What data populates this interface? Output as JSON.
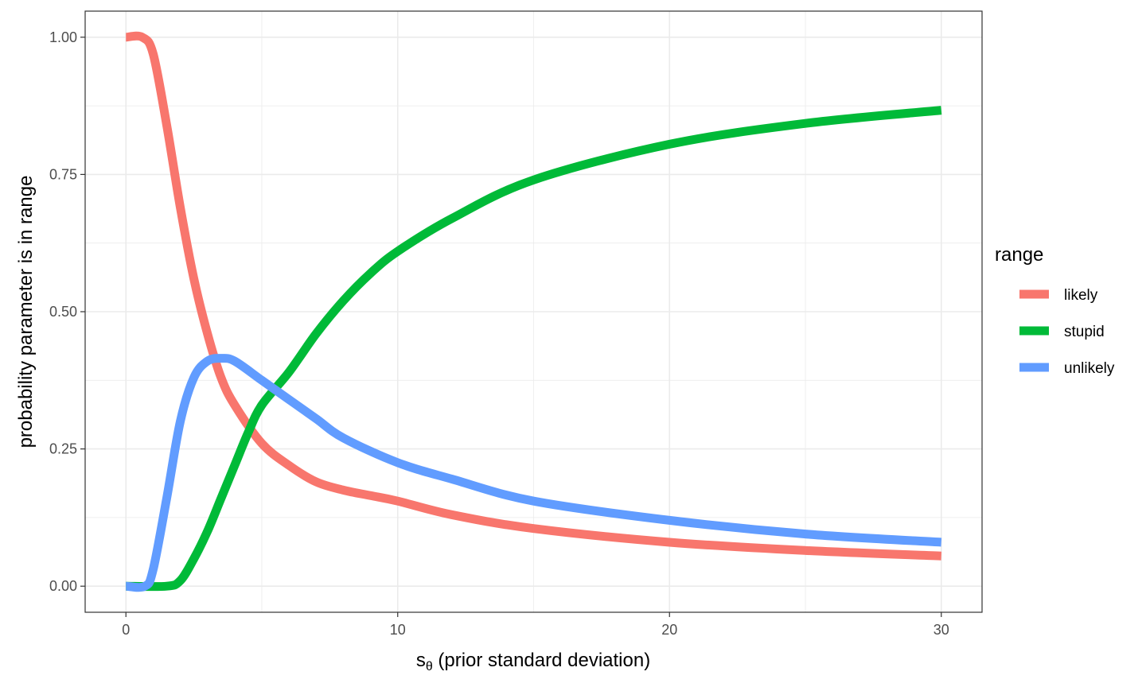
{
  "chart_data": {
    "type": "line",
    "xlabel_main": "s",
    "xlabel_sub": "θ",
    "xlabel_rest": " (prior standard deviation)",
    "ylabel": "probability parameter is in range",
    "xlim": [
      -1.5,
      31.5
    ],
    "ylim": [
      -0.0475,
      1.0475
    ],
    "x_ticks": [
      0,
      10,
      20,
      30
    ],
    "x_tick_labels": [
      "0",
      "10",
      "20",
      "30"
    ],
    "y_ticks": [
      0,
      0.25,
      0.5,
      0.75,
      1.0
    ],
    "y_tick_labels": [
      "0.00",
      "0.25",
      "0.50",
      "0.75",
      "1.00"
    ],
    "grid": true,
    "legend": {
      "title": "range",
      "placement": "right"
    },
    "series": [
      {
        "name": "likely",
        "color": "#F8766D",
        "x": [
          0,
          0.6,
          1,
          1.5,
          2,
          2.5,
          3,
          3.5,
          4,
          5,
          6,
          7,
          8,
          9,
          10,
          12,
          15,
          20,
          25,
          30
        ],
        "y": [
          1.0,
          1.0,
          0.97,
          0.84,
          0.69,
          0.56,
          0.46,
          0.38,
          0.33,
          0.26,
          0.22,
          0.19,
          0.175,
          0.165,
          0.155,
          0.13,
          0.105,
          0.08,
          0.065,
          0.055
        ]
      },
      {
        "name": "stupid",
        "color": "#00BA38",
        "x": [
          0,
          1.5,
          2,
          2.5,
          3,
          3.5,
          4,
          4.5,
          5,
          6,
          7,
          8,
          9,
          10,
          12,
          15,
          20,
          25,
          30
        ],
        "y": [
          0.0,
          0.0,
          0.01,
          0.05,
          0.1,
          0.16,
          0.22,
          0.28,
          0.33,
          0.39,
          0.46,
          0.52,
          0.57,
          0.61,
          0.67,
          0.74,
          0.805,
          0.843,
          0.867
        ]
      },
      {
        "name": "unlikely",
        "color": "#619CFF",
        "x": [
          0,
          0.7,
          1,
          1.5,
          2,
          2.5,
          3,
          3.5,
          4,
          5,
          6,
          7,
          8,
          10,
          12,
          15,
          20,
          25,
          30
        ],
        "y": [
          0.0,
          0.0,
          0.03,
          0.16,
          0.3,
          0.38,
          0.41,
          0.415,
          0.41,
          0.375,
          0.34,
          0.305,
          0.27,
          0.225,
          0.195,
          0.155,
          0.12,
          0.095,
          0.08
        ]
      }
    ]
  }
}
